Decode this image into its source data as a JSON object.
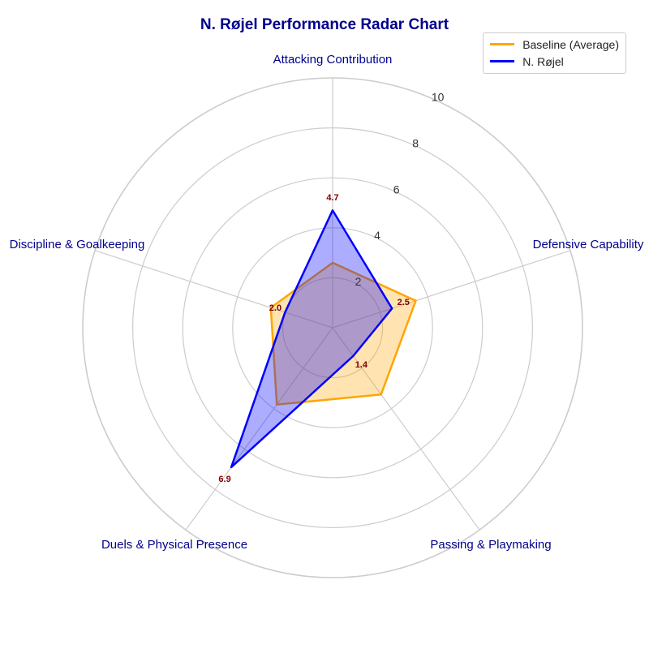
{
  "chart_data": {
    "type": "radar",
    "title": "N. Røjel Performance Radar Chart",
    "categories": [
      "Attacking Contribution",
      "Defensive Capability",
      "Passing & Playmaking",
      "Duels & Physical Presence",
      "Discipline & Goalkeeping"
    ],
    "series": [
      {
        "name": "Baseline (Average)",
        "values": [
          2.6,
          3.5,
          3.3,
          3.8,
          2.6
        ],
        "color": "#ffa500",
        "fill": "#ffa500"
      },
      {
        "name": "N. Røjel",
        "values": [
          4.7,
          2.5,
          1.4,
          6.9,
          2.0
        ],
        "color": "#0000ff",
        "fill": "#0000ff"
      }
    ],
    "data_labels": [
      "4.7",
      "2.5",
      "1.4",
      "6.9",
      "2.0"
    ],
    "rlim": [
      0,
      10
    ],
    "r_ticks": [
      2,
      4,
      6,
      8,
      10
    ],
    "grid": true,
    "legend_position": "top-right",
    "label_color": "#00008b",
    "data_label_color": "#800000"
  }
}
